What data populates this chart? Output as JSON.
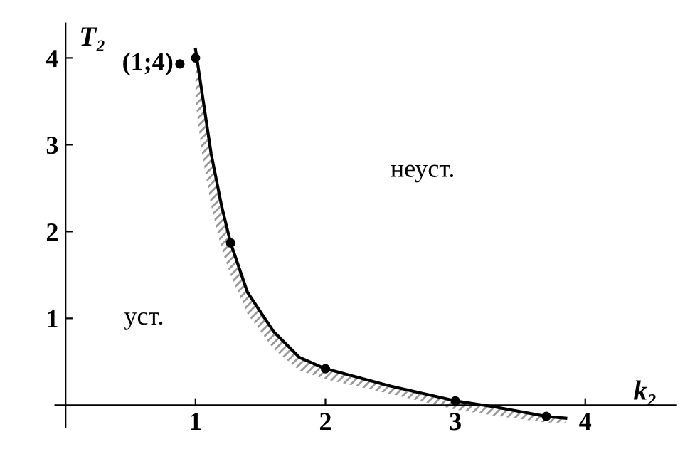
{
  "chart_data": {
    "type": "line",
    "xlabel": "k₂",
    "ylabel": "T₂",
    "xlim": [
      -0.08,
      4.7
    ],
    "ylim": [
      -0.25,
      4.4
    ],
    "xticks": [
      1,
      2,
      3,
      4
    ],
    "yticks": [
      1,
      2,
      3,
      4
    ],
    "grid": false,
    "legend": false,
    "series": [
      {
        "color": "#000000",
        "marker": "none",
        "x": [
          1.0,
          1.05,
          1.12,
          1.2,
          1.27,
          1.4,
          1.6,
          1.8,
          2.0,
          2.5,
          3.0,
          3.3,
          3.7,
          3.85
        ],
        "values": [
          4.1,
          3.6,
          2.9,
          2.3,
          1.87,
          1.3,
          0.85,
          0.55,
          0.42,
          0.22,
          0.05,
          -0.02,
          -0.13,
          -0.15
        ],
        "lower": [
          3.5,
          2.9,
          2.3,
          1.8,
          1.5,
          1.05,
          0.65,
          0.4,
          0.3,
          0.13,
          -0.05,
          -0.12,
          -0.2,
          -0.2
        ],
        "upper": [
          4.1,
          3.6,
          2.9,
          2.3,
          1.87,
          1.3,
          0.85,
          0.55,
          0.42,
          0.22,
          0.05,
          -0.02,
          -0.13,
          -0.15
        ]
      },
      {
        "type": "scatter",
        "color": "#000000",
        "marker": "circle",
        "x": [
          0.88,
          1.0,
          1.27,
          2.0,
          3.0,
          3.7
        ],
        "values": [
          3.93,
          4.0,
          1.87,
          0.42,
          0.05,
          -0.13
        ]
      }
    ],
    "annotations": [
      {
        "text": "(1;4)",
        "x": 0.88,
        "y": 3.93
      },
      "неуст.",
      "уст."
    ]
  }
}
